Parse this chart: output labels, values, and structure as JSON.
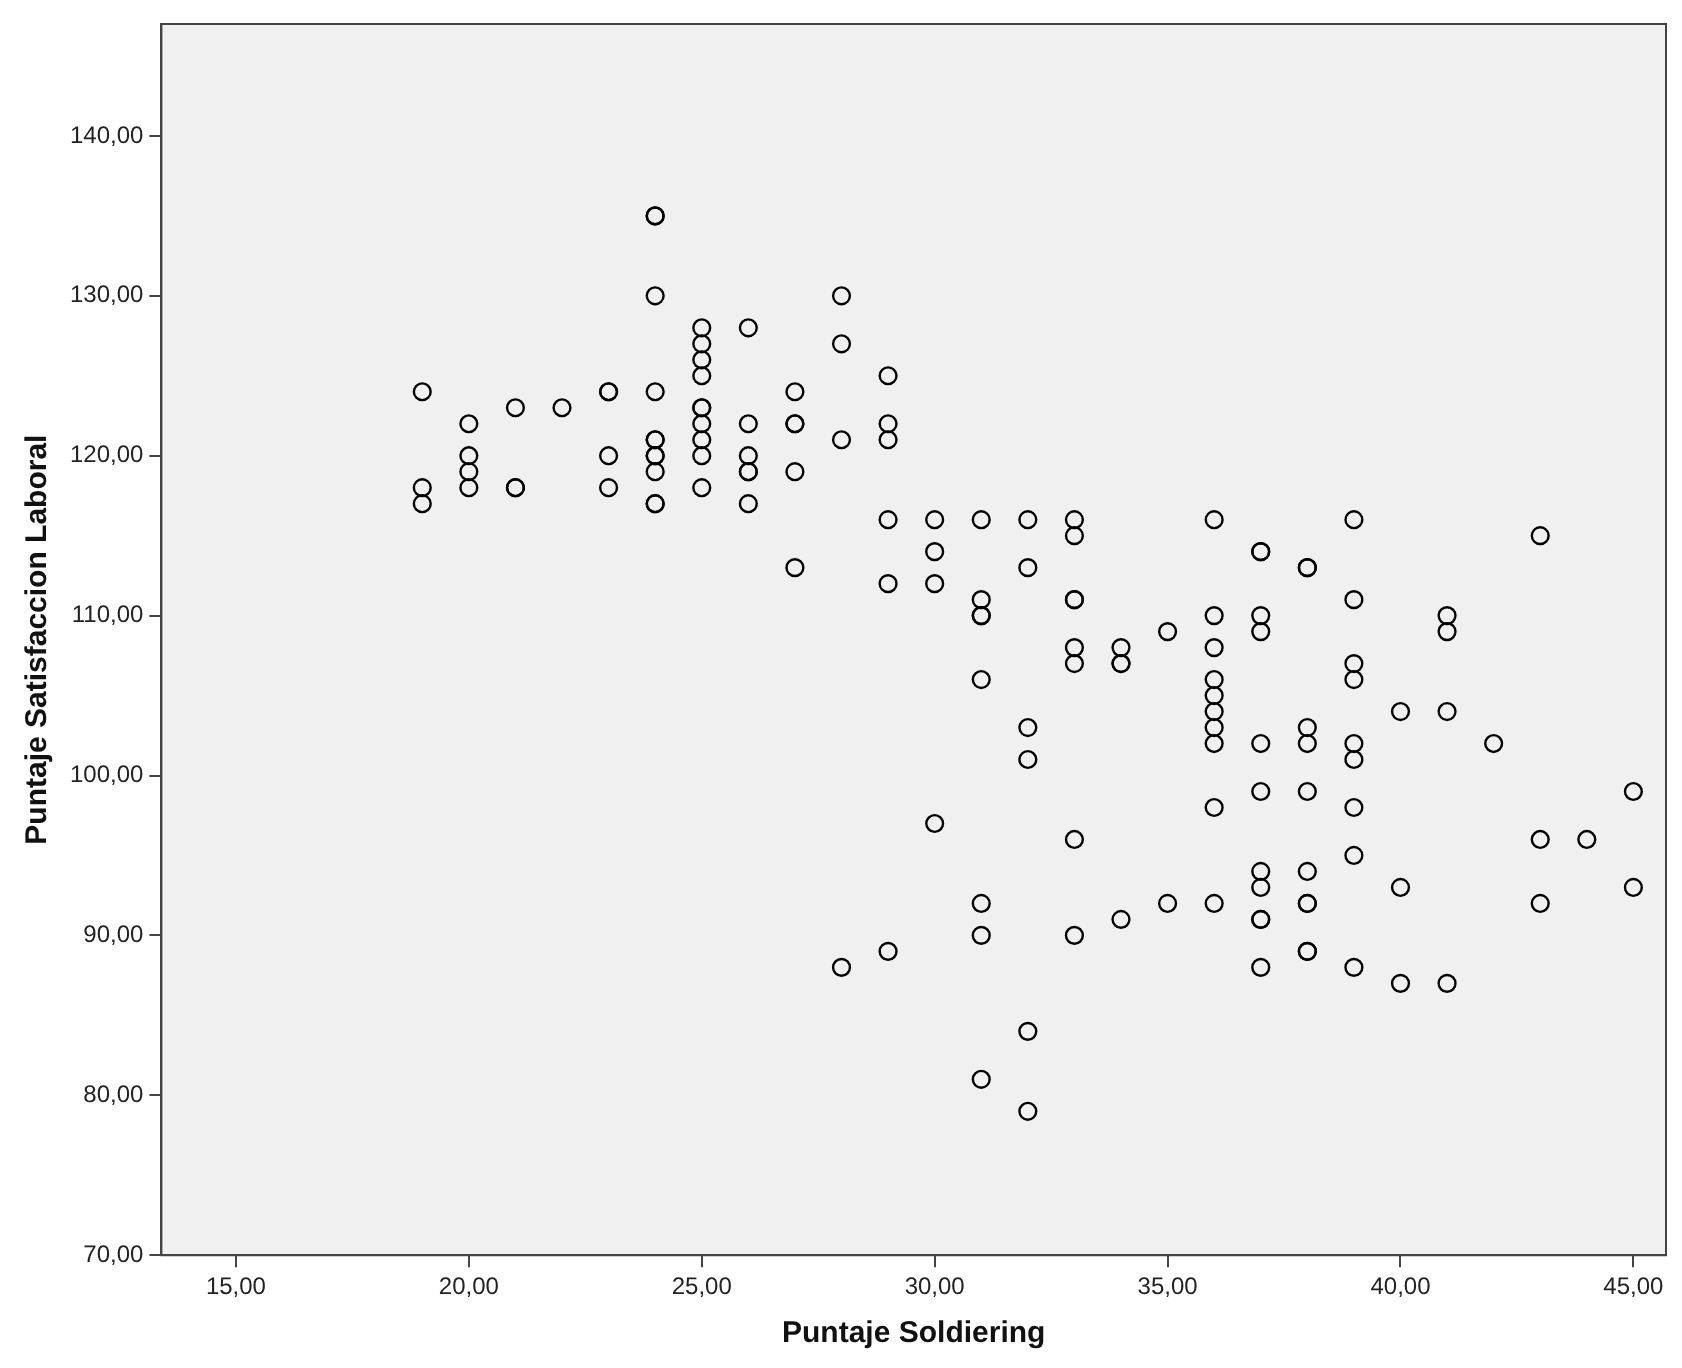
{
  "chart_data": {
    "type": "scatter",
    "xlabel": "Puntaje Soldiering",
    "ylabel": "Puntaje Satisfaccion Laboral",
    "marker": "circle",
    "grid": false,
    "legend": false,
    "xlim": [
      13.4,
      45.7
    ],
    "ylim": [
      70,
      147
    ],
    "xticks": [
      {
        "value": 15,
        "label": "15,00"
      },
      {
        "value": 20,
        "label": "20,00"
      },
      {
        "value": 25,
        "label": "25,00"
      },
      {
        "value": 30,
        "label": "30,00"
      },
      {
        "value": 35,
        "label": "35,00"
      },
      {
        "value": 40,
        "label": "40,00"
      },
      {
        "value": 45,
        "label": "45,00"
      }
    ],
    "yticks": [
      {
        "value": 70,
        "label": "70,00"
      },
      {
        "value": 80,
        "label": "80,00"
      },
      {
        "value": 90,
        "label": "90,00"
      },
      {
        "value": 100,
        "label": "100,00"
      },
      {
        "value": 110,
        "label": "110,00"
      },
      {
        "value": 120,
        "label": "120,00"
      },
      {
        "value": 130,
        "label": "130,00"
      },
      {
        "value": 140,
        "label": "140,00"
      }
    ],
    "series": [
      {
        "color": "#000000",
        "x": [
          19,
          19,
          19,
          20,
          20,
          20,
          20,
          21,
          21,
          21,
          22,
          23,
          23,
          23,
          23,
          24,
          24,
          24,
          24,
          24,
          24,
          24,
          24,
          24,
          24,
          24,
          25,
          25,
          25,
          25,
          25,
          25,
          25,
          25,
          25,
          25,
          26,
          26,
          26,
          26,
          26,
          26,
          27,
          27,
          27,
          27,
          27,
          28,
          28,
          28,
          28,
          29,
          29,
          29,
          29,
          29,
          29,
          30,
          30,
          30,
          30,
          31,
          31,
          31,
          31,
          31,
          31,
          31,
          31,
          32,
          32,
          32,
          32,
          32,
          32,
          33,
          33,
          33,
          33,
          33,
          33,
          33,
          33,
          34,
          34,
          34,
          34,
          35,
          35,
          36,
          36,
          36,
          36,
          36,
          36,
          36,
          36,
          36,
          36,
          37,
          37,
          37,
          37,
          37,
          37,
          37,
          37,
          37,
          37,
          37,
          38,
          38,
          38,
          38,
          38,
          38,
          38,
          38,
          38,
          38,
          39,
          39,
          39,
          39,
          39,
          39,
          39,
          39,
          39,
          40,
          40,
          40,
          41,
          41,
          41,
          41,
          42,
          43,
          43,
          43,
          44,
          45,
          45
        ],
        "values": [
          124,
          118,
          117,
          122,
          120,
          119,
          118,
          123,
          118,
          118,
          123,
          124,
          124,
          120,
          118,
          135,
          135,
          130,
          124,
          121,
          121,
          120,
          119,
          120,
          117,
          117,
          128,
          127,
          126,
          125,
          123,
          123,
          122,
          121,
          120,
          118,
          128,
          122,
          120,
          119,
          119,
          117,
          124,
          122,
          122,
          119,
          113,
          130,
          127,
          121,
          88,
          125,
          122,
          121,
          116,
          112,
          89,
          116,
          114,
          112,
          97,
          116,
          111,
          110,
          110,
          106,
          92,
          90,
          81,
          116,
          113,
          103,
          101,
          84,
          79,
          116,
          115,
          111,
          111,
          108,
          107,
          96,
          90,
          108,
          107,
          107,
          91,
          109,
          92,
          116,
          110,
          108,
          106,
          105,
          104,
          103,
          102,
          98,
          92,
          114,
          114,
          110,
          109,
          102,
          99,
          94,
          93,
          91,
          91,
          88,
          113,
          113,
          103,
          102,
          99,
          94,
          92,
          92,
          89,
          89,
          116,
          111,
          107,
          106,
          102,
          101,
          98,
          95,
          88,
          104,
          93,
          87,
          110,
          109,
          104,
          87,
          102,
          115,
          96,
          92,
          96,
          99,
          93
        ]
      }
    ]
  }
}
